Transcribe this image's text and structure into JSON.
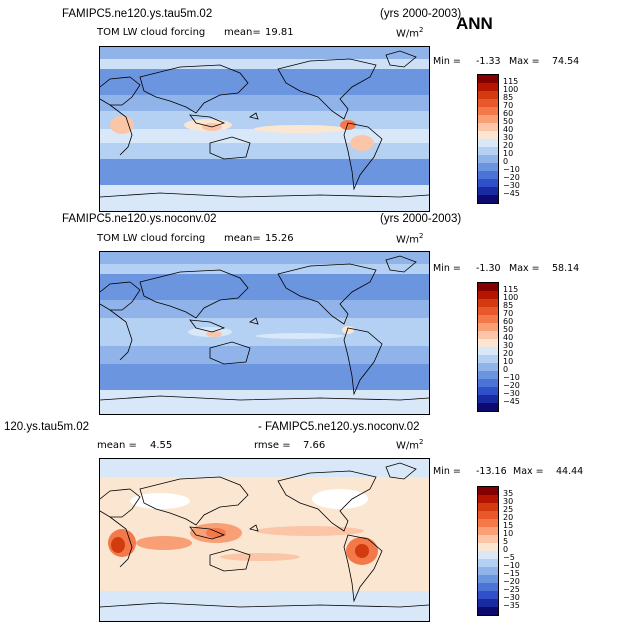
{
  "figure_title": "ANN",
  "panels": [
    {
      "case_left": "FAMIPC5.ne120.ys.tau5m.02",
      "case_right": "(yrs 2000-2003)",
      "variable": "TOM LW cloud forcing",
      "stat1_label": "mean=",
      "stat1_value": "19.81",
      "units": "W/m",
      "units_exp": "2",
      "min_label": "Min =",
      "min_value": "-1.33",
      "max_label": "Max =",
      "max_value": "74.54"
    },
    {
      "case_left": "FAMIPC5.ne120.ys.noconv.02",
      "case_right": "(yrs 2000-2003)",
      "variable": "TOM LW cloud forcing",
      "stat1_label": "mean=",
      "stat1_value": "15.26",
      "units": "W/m",
      "units_exp": "2",
      "min_label": "Min =",
      "min_value": "-1.30",
      "max_label": "Max =",
      "max_value": "58.14"
    },
    {
      "case_left": "120.ys.tau5m.02",
      "case_right": "- FAMIPC5.ne120.ys.noconv.02",
      "stat1_label": "mean =",
      "stat1_value": "4.55",
      "stat2_label": "rmse =",
      "stat2_value": "7.66",
      "units": "W/m",
      "units_exp": "2",
      "min_label": "Min =",
      "min_value": "-13.16",
      "max_label": "Max =",
      "max_value": "44.44"
    }
  ],
  "chart_data": [
    {
      "type": "heatmap",
      "title": "FAMIPC5.ne120.ys.tau5m.02",
      "subtitle": "TOM LW cloud forcing",
      "mean": 19.81,
      "min": -1.33,
      "max": 74.54,
      "units": "W/m2",
      "colorbar_levels": [
        "115",
        "100",
        "85",
        "70",
        "60",
        "50",
        "40",
        "30",
        "20",
        "10",
        "0",
        "−10",
        "−20",
        "−30",
        "−45"
      ],
      "colorbar_colors": [
        "#840000",
        "#b41400",
        "#d23a10",
        "#e8582a",
        "#f3794a",
        "#f89f76",
        "#fbc6a8",
        "#fbe6d2",
        "#d8e8f8",
        "#b4d0f2",
        "#90b4ea",
        "#6c95e0",
        "#4c74d6",
        "#2f50c8",
        "#1a2aa0",
        "#0c0a6e"
      ]
    },
    {
      "type": "heatmap",
      "title": "FAMIPC5.ne120.ys.noconv.02",
      "subtitle": "TOM LW cloud forcing",
      "mean": 15.26,
      "min": -1.3,
      "max": 58.14,
      "units": "W/m2",
      "colorbar_levels": [
        "115",
        "100",
        "85",
        "70",
        "60",
        "50",
        "40",
        "30",
        "20",
        "10",
        "0",
        "−10",
        "−20",
        "−30",
        "−45"
      ],
      "colorbar_colors": [
        "#840000",
        "#b41400",
        "#d23a10",
        "#e8582a",
        "#f3794a",
        "#f89f76",
        "#fbc6a8",
        "#fbe6d2",
        "#d8e8f8",
        "#b4d0f2",
        "#90b4ea",
        "#6c95e0",
        "#4c74d6",
        "#2f50c8",
        "#1a2aa0",
        "#0c0a6e"
      ]
    },
    {
      "type": "heatmap",
      "title": "120.ys.tau5m.02 - FAMIPC5.ne120.ys.noconv.02",
      "mean": 4.55,
      "rmse": 7.66,
      "min": -13.16,
      "max": 44.44,
      "units": "W/m2",
      "colorbar_levels": [
        "35",
        "30",
        "25",
        "20",
        "15",
        "10",
        "5",
        "0",
        "−5",
        "−10",
        "−15",
        "−20",
        "−25",
        "−30",
        "−35"
      ],
      "colorbar_colors": [
        "#840000",
        "#b41400",
        "#d23a10",
        "#e8582a",
        "#f3794a",
        "#f89f76",
        "#fbc6a8",
        "#fbe6d2",
        "#d8e8f8",
        "#b4d0f2",
        "#90b4ea",
        "#6c95e0",
        "#4c74d6",
        "#2f50c8",
        "#1a2aa0",
        "#0c0a6e"
      ]
    }
  ]
}
